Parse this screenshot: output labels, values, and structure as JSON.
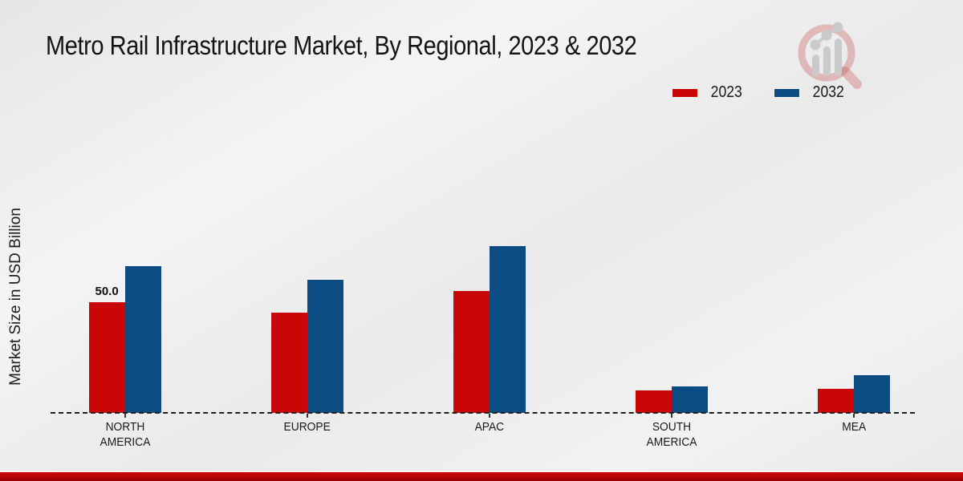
{
  "title": "Metro Rail Infrastructure Market, By Regional, 2023 & 2032",
  "ylabel": "Market Size in USD Billion",
  "watermark_icon": "magnifier-growth-chart-logo",
  "footer_accent_color": "#b30303",
  "chart_data": {
    "type": "bar",
    "title": "Metro Rail Infrastructure Market, By Regional, 2023 & 2032",
    "xlabel": "",
    "ylabel": "Market Size in USD Billion",
    "categories": [
      "NORTH AMERICA",
      "EUROPE",
      "APAC",
      "SOUTH AMERICA",
      "MEA"
    ],
    "series": [
      {
        "name": "2023",
        "color": "#c90707",
        "values": [
          50.0,
          45.0,
          55.0,
          10.0,
          11.0
        ]
      },
      {
        "name": "2032",
        "color": "#0b4c83",
        "values": [
          66.0,
          60.0,
          75.0,
          12.0,
          17.0
        ]
      }
    ],
    "annotations": [
      {
        "series_index": 0,
        "category_index": 0,
        "text": "50.0"
      }
    ],
    "ylim": [
      0,
      80
    ],
    "grid": false,
    "legend_position": "top-right",
    "baseline_style": "dashed",
    "y_axis_ticks_visible": false
  }
}
